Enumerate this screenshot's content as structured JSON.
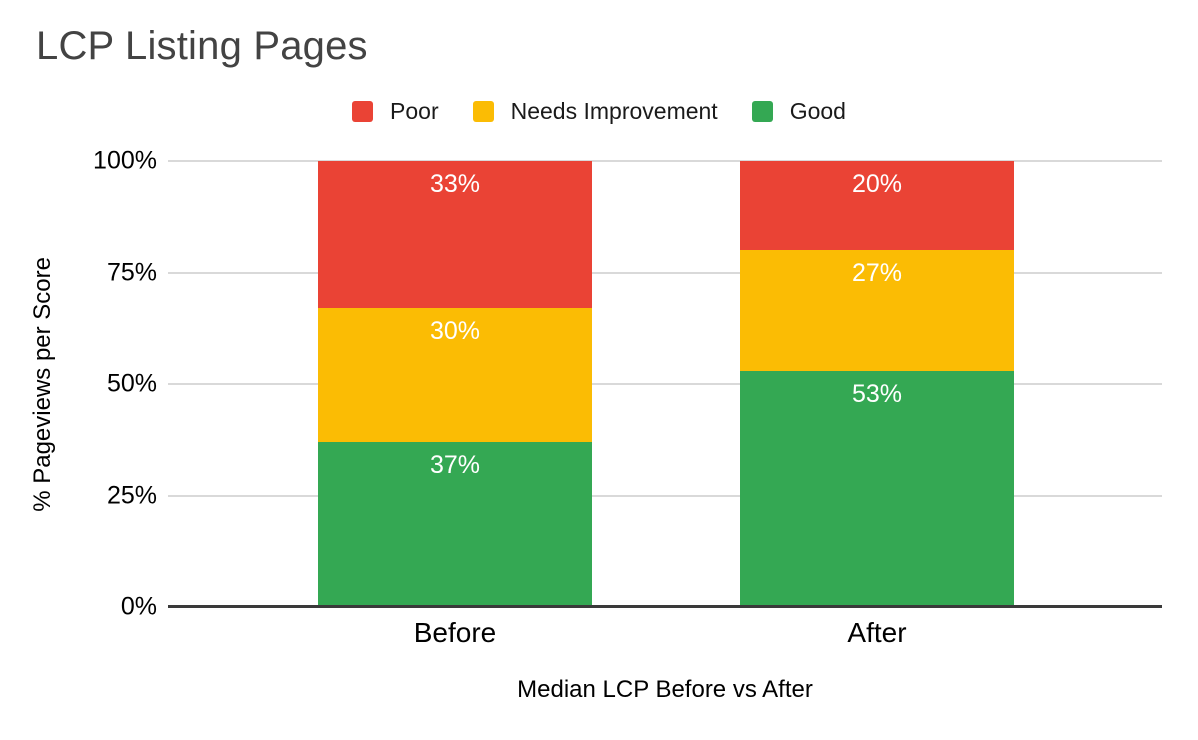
{
  "chart_data": {
    "type": "bar",
    "stacked": true,
    "title": "LCP Listing Pages",
    "xlabel": "Median LCP Before vs After",
    "ylabel": "% Pageviews per Score",
    "categories": [
      "Before",
      "After"
    ],
    "series": [
      {
        "name": "Poor",
        "color": "#EA4335",
        "values": [
          33,
          20
        ]
      },
      {
        "name": "Needs Improvement",
        "color": "#FBBC04",
        "values": [
          30,
          27
        ]
      },
      {
        "name": "Good",
        "color": "#34A853",
        "values": [
          37,
          53
        ]
      }
    ],
    "yticks": [
      "0%",
      "25%",
      "50%",
      "75%",
      "100%"
    ],
    "ylim": [
      0,
      100
    ],
    "grid": true,
    "legend_position": "top",
    "value_suffix": "%",
    "colors": {
      "title_text": "#434343",
      "axis_text": "#000000",
      "gridline": "#d9d9d9",
      "axis_line": "#3a3a3a",
      "data_label_text": "#ffffff",
      "background": "#ffffff"
    }
  }
}
